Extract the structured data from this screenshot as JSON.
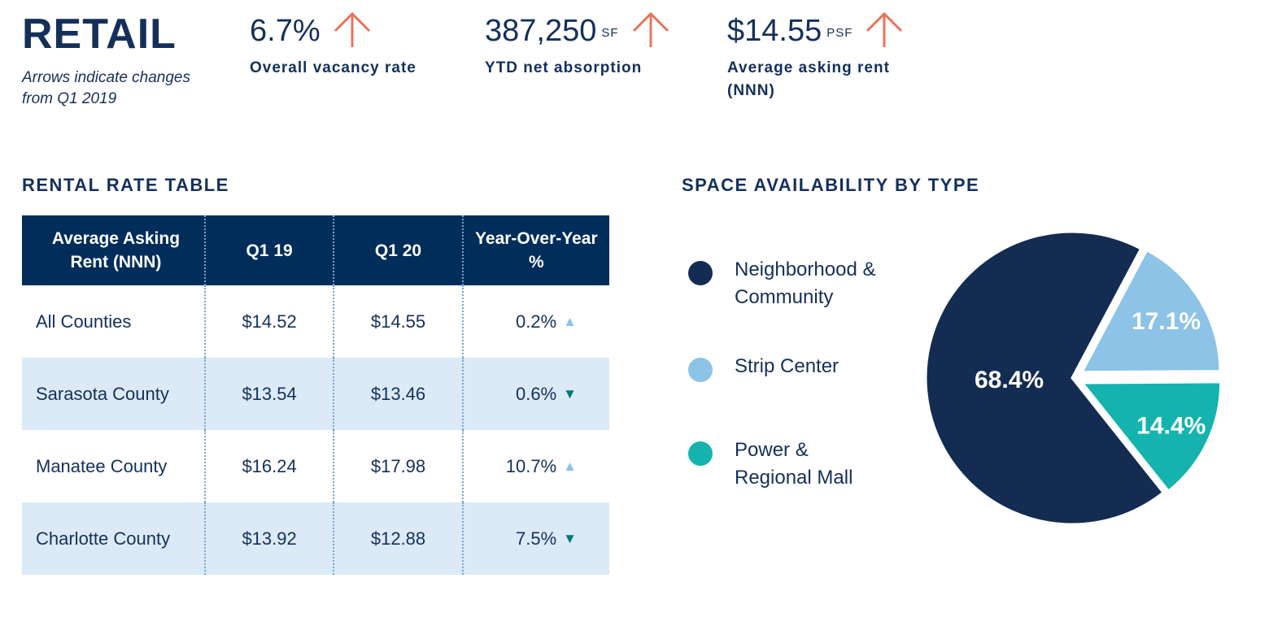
{
  "header": {
    "title": "RETAIL",
    "note": "Arrows indicate changes from Q1 2019"
  },
  "kpis": [
    {
      "value": "6.7%",
      "unit": "",
      "label": "Overall vacancy rate",
      "trend": "up"
    },
    {
      "value": "387,250",
      "unit": "SF",
      "label": "YTD net absorption",
      "trend": "up"
    },
    {
      "value": "$14.55",
      "unit": "PSF",
      "label": "Average asking rent (NNN)",
      "trend": "up"
    }
  ],
  "colors": {
    "navy": "#14305a",
    "table_header": "#002d5a",
    "row_alt": "#dbeaf6",
    "arrow": "#e8735a",
    "up_triangle": "#8cc3e6",
    "down_triangle": "#007a7c"
  },
  "table": {
    "title": "RENTAL RATE TABLE",
    "headers": [
      "Average Asking Rent (NNN)",
      "Q1 19",
      "Q1 20",
      "Year-Over-Year %"
    ],
    "rows": [
      {
        "name": "All Counties",
        "q1_19": "$14.52",
        "q1_20": "$14.55",
        "yoy": "0.2%",
        "trend": "up"
      },
      {
        "name": "Sarasota County",
        "q1_19": "$13.54",
        "q1_20": "$13.46",
        "yoy": "0.6%",
        "trend": "down"
      },
      {
        "name": "Manatee County",
        "q1_19": "$16.24",
        "q1_20": "$17.98",
        "yoy": "10.7%",
        "trend": "up"
      },
      {
        "name": "Charlotte County",
        "q1_19": "$13.92",
        "q1_20": "$12.88",
        "yoy": "7.5%",
        "trend": "down"
      }
    ]
  },
  "chart_data": {
    "type": "pie",
    "title": "SPACE AVAILABILITY BY TYPE",
    "legend_position": "left",
    "slices": [
      {
        "label": "Neighborhood & Community",
        "value": 68.4,
        "display": "68.4%",
        "color": "#142c52"
      },
      {
        "label": "Strip Center",
        "value": 17.1,
        "display": "17.1%",
        "color": "#8cc3e6"
      },
      {
        "label": "Power & Regional Mall",
        "value": 14.4,
        "display": "14.4%",
        "color": "#14b3ae"
      }
    ]
  }
}
